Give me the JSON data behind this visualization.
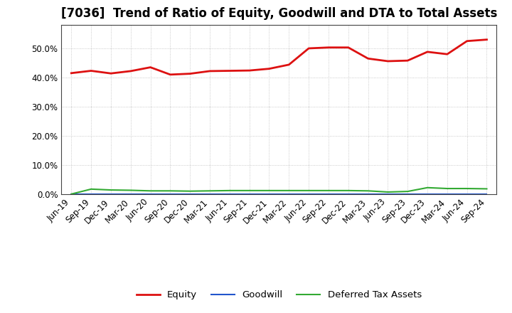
{
  "title": "[7036]  Trend of Ratio of Equity, Goodwill and DTA to Total Assets",
  "x_labels": [
    "Jun-19",
    "Sep-19",
    "Dec-19",
    "Mar-20",
    "Jun-20",
    "Sep-20",
    "Dec-20",
    "Mar-21",
    "Jun-21",
    "Sep-21",
    "Dec-21",
    "Mar-22",
    "Jun-22",
    "Sep-22",
    "Dec-22",
    "Mar-23",
    "Jun-23",
    "Sep-23",
    "Dec-23",
    "Mar-24",
    "Jun-24",
    "Sep-24"
  ],
  "equity": [
    0.415,
    0.423,
    0.414,
    0.422,
    0.435,
    0.41,
    0.413,
    0.422,
    0.423,
    0.424,
    0.43,
    0.444,
    0.5,
    0.503,
    0.503,
    0.465,
    0.456,
    0.458,
    0.488,
    0.48,
    0.525,
    0.53
  ],
  "goodwill": [
    0.0,
    0.0,
    0.0,
    0.0,
    0.0,
    0.0,
    0.0,
    0.0,
    0.0,
    0.0,
    0.0,
    0.0,
    0.0,
    0.0,
    0.0,
    0.0,
    0.0,
    0.0,
    0.0,
    0.0,
    0.0,
    0.0
  ],
  "dta": [
    0.0,
    0.017,
    0.014,
    0.013,
    0.011,
    0.011,
    0.01,
    0.011,
    0.012,
    0.012,
    0.012,
    0.012,
    0.012,
    0.012,
    0.012,
    0.011,
    0.007,
    0.009,
    0.022,
    0.019,
    0.019,
    0.018
  ],
  "equity_color": "#dd1111",
  "goodwill_color": "#2255cc",
  "dta_color": "#33aa33",
  "background_color": "#ffffff",
  "grid_color": "#bbbbbb",
  "ylim": [
    0.0,
    0.58
  ],
  "yticks": [
    0.0,
    0.1,
    0.2,
    0.3,
    0.4,
    0.5
  ],
  "legend_labels": [
    "Equity",
    "Goodwill",
    "Deferred Tax Assets"
  ],
  "title_fontsize": 12,
  "axis_fontsize": 8.5
}
